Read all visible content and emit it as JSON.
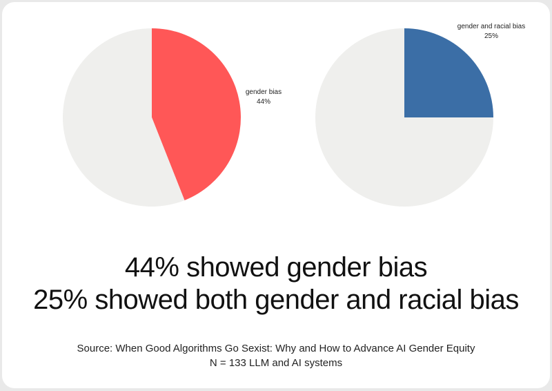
{
  "chart_data": [
    {
      "type": "pie",
      "slices": [
        {
          "label": "gender bias",
          "value": 44,
          "value_label": "44%",
          "color": "#ff5757"
        },
        {
          "label": "",
          "value": 56,
          "value_label": "",
          "color": "#efefed"
        }
      ],
      "start_angle": "12 o'clock",
      "direction": "clockwise"
    },
    {
      "type": "pie",
      "slices": [
        {
          "label": "gender and racial bias",
          "value": 25,
          "value_label": "25%",
          "color": "#3b6ea6"
        },
        {
          "label": "",
          "value": 75,
          "value_label": "",
          "color": "#efefed"
        }
      ],
      "start_angle": "12 o'clock",
      "direction": "clockwise"
    }
  ],
  "headline": {
    "line1": "44% showed gender bias",
    "line2": "25% showed both gender and racial bias"
  },
  "source": {
    "line1": "Source: When Good Algorithms Go Sexist: Why and How to Advance AI Gender Equity",
    "line2": "N = 133 LLM and AI systems"
  }
}
